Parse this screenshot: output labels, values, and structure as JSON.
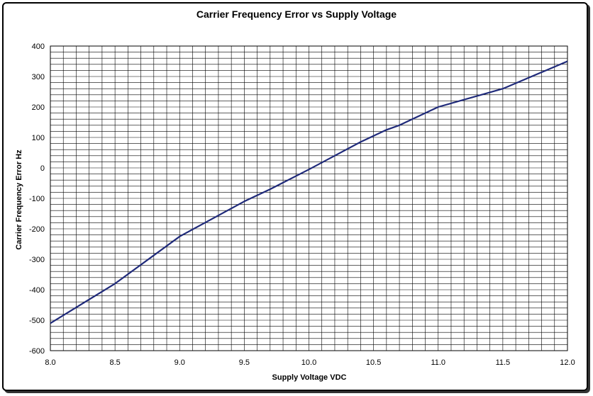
{
  "chart_data": {
    "type": "line",
    "title": "Carrier Frequency Error vs Supply Voltage",
    "xlabel": "Supply Voltage VDC",
    "ylabel": "Carrier Frequency Error Hz",
    "xlim": [
      8.0,
      12.0
    ],
    "ylim": [
      -600,
      400
    ],
    "x_ticks": [
      "8.0",
      "8.5",
      "9.0",
      "9.5",
      "10.0",
      "10.5",
      "11.0",
      "11.5",
      "12.0"
    ],
    "y_ticks": [
      "400",
      "300",
      "200",
      "100",
      "0",
      "-100",
      "-200",
      "-300",
      "-400",
      "-500",
      "-600"
    ],
    "grid": true,
    "series": [
      {
        "color": "#1f2a7a",
        "x": [
          8.0,
          8.5,
          9.0,
          9.5,
          9.7,
          10.0,
          10.2,
          10.4,
          10.6,
          10.7,
          11.0,
          11.5,
          12.0
        ],
        "y": [
          -510,
          -380,
          -225,
          -110,
          -70,
          -5,
          40,
          85,
          125,
          140,
          200,
          260,
          350
        ]
      }
    ]
  }
}
